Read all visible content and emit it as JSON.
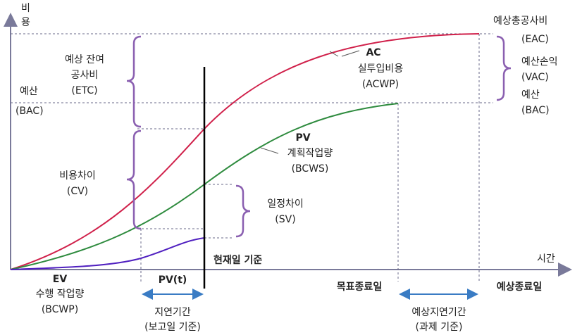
{
  "axes": {
    "y_label": [
      "비",
      "용"
    ],
    "x_label": "시간"
  },
  "eac": {
    "label": "예상총공사비",
    "abbr": "(EAC)"
  },
  "vac": {
    "label": "예산손익",
    "abbr": "(VAC)"
  },
  "bac_right": {
    "label": "예산",
    "abbr": "(BAC)"
  },
  "bac_left": {
    "label": "예산",
    "abbr": "(BAC)"
  },
  "etc": {
    "label": [
      "예상 잔여",
      "공사비"
    ],
    "abbr": "(ETC)"
  },
  "ac": {
    "name": "AC",
    "label": "실투입비용",
    "abbr": "(ACWP)"
  },
  "pv": {
    "name": "PV",
    "label": "계획작업량",
    "abbr": "(BCWS)"
  },
  "cv": {
    "label": "비용차이",
    "abbr": "(CV)"
  },
  "sv": {
    "label": "일정차이",
    "abbr": "(SV)"
  },
  "status_date": "현재일 기준",
  "ev": {
    "name": "EV",
    "label": "수행 작업량",
    "abbr": "(BCWP)"
  },
  "pvt": "PV(t)",
  "delay": {
    "label": "지연기간",
    "note": "(보고일 기준)"
  },
  "target_end": "목표종료일",
  "expected_end": "예상종료일",
  "expected_delay": {
    "label": "예상지연기간",
    "note": "(과제 기준)"
  }
}
